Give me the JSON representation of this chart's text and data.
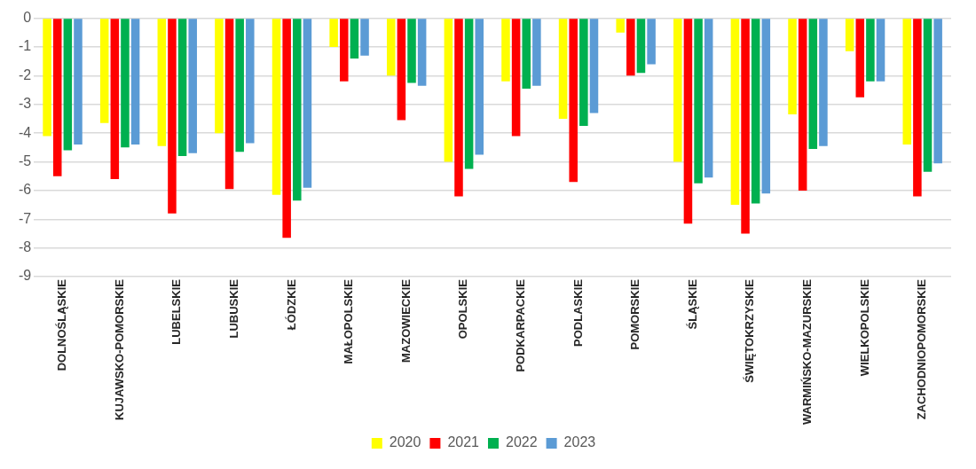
{
  "chart_data": {
    "type": "bar",
    "categories": [
      "DOLNOŚLĄSKIE",
      "KUJAWSKO-POMORSKIE",
      "LUBELSKIE",
      "LUBUSKIE",
      "ŁÓDZKIE",
      "MAŁOPOLSKIE",
      "MAZOWIECKIE",
      "OPOLSKIE",
      "PODKARPACKIE",
      "PODLASKIE",
      "POMORSKIE",
      "ŚLĄSKIE",
      "ŚWIĘTOKRZYSKIE",
      "WARMIŃSKO-MAZURSKIE",
      "WIELKOPOLSKIE",
      "ZACHODNIOPOMORSKIE"
    ],
    "series": [
      {
        "name": "2020",
        "color": "#ffff00",
        "values": [
          -4.1,
          -3.65,
          -4.45,
          -4.0,
          -6.15,
          -1.0,
          -2.0,
          -5.0,
          -2.2,
          -3.5,
          -0.5,
          -5.0,
          -6.5,
          -3.35,
          -1.15,
          -4.4
        ]
      },
      {
        "name": "2021",
        "color": "#ff0000",
        "values": [
          -5.5,
          -5.6,
          -6.8,
          -5.95,
          -7.65,
          -2.2,
          -3.55,
          -6.2,
          -4.1,
          -5.7,
          -2.0,
          -7.15,
          -7.5,
          -6.0,
          -2.75,
          -6.2
        ]
      },
      {
        "name": "2022",
        "color": "#00b050",
        "values": [
          -4.6,
          -4.5,
          -4.8,
          -4.65,
          -6.35,
          -1.4,
          -2.25,
          -5.25,
          -2.45,
          -3.75,
          -1.9,
          -5.75,
          -6.45,
          -4.55,
          -2.2,
          -5.35
        ]
      },
      {
        "name": "2023",
        "color": "#5b9bd5",
        "values": [
          -4.4,
          -4.4,
          -4.7,
          -4.35,
          -5.9,
          -1.3,
          -2.35,
          -4.75,
          -2.35,
          -3.3,
          -1.6,
          -5.55,
          -6.1,
          -4.45,
          -2.2,
          -5.05
        ]
      }
    ],
    "ylim": [
      -9,
      0
    ],
    "yticks": [
      0,
      -1,
      -2,
      -3,
      -4,
      -5,
      -6,
      -7,
      -8,
      -9
    ],
    "grid": "y",
    "legend": "bottom"
  }
}
